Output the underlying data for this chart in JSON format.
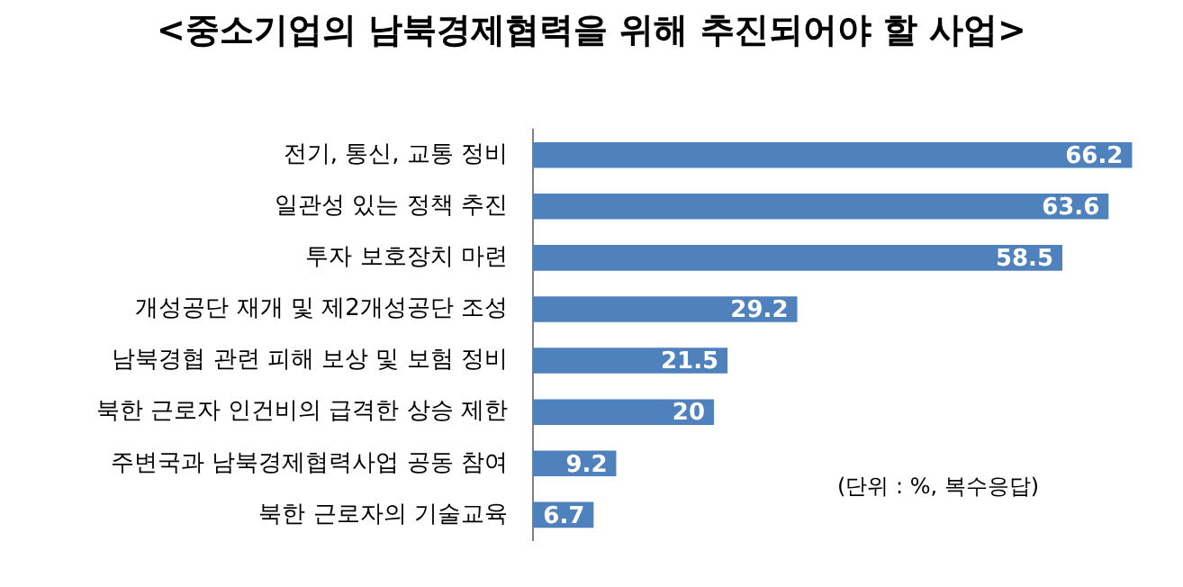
{
  "chart_data": {
    "type": "bar",
    "orientation": "horizontal",
    "title": "<중소기업의 남북경제협력을 위해 추진되어야 할 사업>",
    "categories": [
      "전기, 통신, 교통 정비",
      "일관성 있는 정책 추진",
      "투자 보호장치 마련",
      "개성공단 재개 및 제2개성공단 조성",
      "남북경협 관련 피해 보상 및 보험 정비",
      "북한 근로자 인건비의 급격한 상승 제한",
      "주변국과 남북경제협력사업 공동 참여",
      "북한 근로자의 기술교육"
    ],
    "values": [
      66.2,
      63.6,
      58.5,
      29.2,
      21.5,
      20,
      9.2,
      6.7
    ],
    "color": "#4f81bd",
    "data_labels": true,
    "legend": false,
    "annotations": [
      "(단위 : %, 복수응답)"
    ]
  }
}
